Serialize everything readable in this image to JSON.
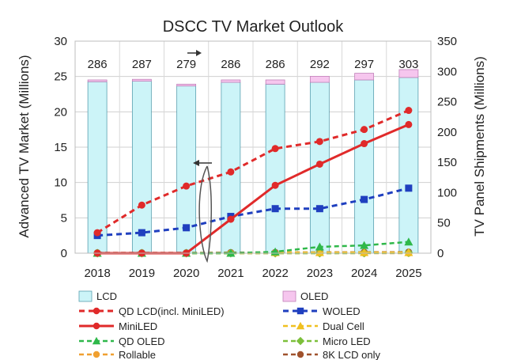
{
  "chart_data": {
    "type": "bar",
    "title": "DSCC TV Market Outlook",
    "categories": [
      "2018",
      "2019",
      "2020",
      "2021",
      "2022",
      "2023",
      "2024",
      "2025"
    ],
    "ylabel": "Advanced TV Market (Millions)",
    "y2label": "TV Panel Shipments (Millions)",
    "ylim": [
      0,
      30
    ],
    "y_ticks": [
      "0",
      "5",
      "10",
      "15",
      "20",
      "25",
      "30"
    ],
    "y2lim": [
      0,
      350
    ],
    "y2_ticks": [
      "0",
      "50",
      "100",
      "150",
      "200",
      "250",
      "300",
      "350"
    ],
    "grid": true,
    "legend_position": "bottom",
    "totals": [
      "286",
      "287",
      "279",
      "286",
      "286",
      "292",
      "297",
      "303"
    ],
    "bars": [
      {
        "name": "LCD",
        "axis": "right",
        "color": "#ccf4f8",
        "stroke": "#5aa0b0",
        "values": [
          283,
          284,
          276,
          282,
          279,
          282,
          286,
          290
        ]
      },
      {
        "name": "OLED",
        "axis": "right",
        "color": "#f6c6ee",
        "stroke": "#c080b8",
        "values": [
          3,
          3,
          3,
          4,
          7,
          10,
          11,
          13
        ]
      }
    ],
    "series": [
      {
        "name": "QD LCD(incl. MiniLED)",
        "axis": "left",
        "color": "#e02a2a",
        "dash": "7,5",
        "marker": "circle",
        "width": 3,
        "values": [
          2.9,
          6.8,
          9.5,
          11.5,
          14.8,
          15.8,
          17.5,
          20.2
        ]
      },
      {
        "name": "WOLED",
        "axis": "left",
        "color": "#1f3fbf",
        "dash": "7,5",
        "marker": "square",
        "width": 3,
        "values": [
          2.5,
          2.9,
          3.6,
          5.2,
          6.3,
          6.3,
          7.6,
          9.2
        ]
      },
      {
        "name": "MiniLED",
        "axis": "left",
        "color": "#e02a2a",
        "dash": "",
        "marker": "circle",
        "width": 3,
        "values": [
          0,
          0,
          0,
          4.8,
          9.6,
          12.6,
          15.5,
          18.2
        ]
      },
      {
        "name": "Dual Cell",
        "axis": "left",
        "color": "#f0c020",
        "dash": "6,4",
        "marker": "triangle",
        "width": 2.5,
        "values": [
          0,
          0,
          0,
          0,
          0.1,
          0.1,
          0.1,
          0.1
        ]
      },
      {
        "name": "QD OLED",
        "axis": "left",
        "color": "#2fb84a",
        "dash": "6,4",
        "marker": "triangle",
        "width": 2.5,
        "values": [
          0,
          0,
          0,
          0,
          0.2,
          0.9,
          1.1,
          1.6
        ]
      },
      {
        "name": "Micro LED",
        "axis": "left",
        "color": "#7cbf3a",
        "dash": "6,4",
        "marker": "diamond",
        "width": 2.5,
        "values": [
          0,
          0,
          0,
          0,
          0,
          0,
          0.02,
          0.05
        ]
      },
      {
        "name": "Rollable",
        "axis": "left",
        "color": "#f0a030",
        "dash": "6,4",
        "marker": "circle",
        "width": 2.5,
        "values": [
          0,
          0,
          0,
          0,
          0,
          0,
          0,
          0
        ]
      },
      {
        "name": "8K LCD only",
        "axis": "left",
        "color": "#a0522d",
        "dash": "6,4",
        "marker": "circle",
        "width": 2.5,
        "values": [
          0.05,
          0.05,
          0.05,
          0.08,
          0.1,
          0.12,
          0.13,
          0.15
        ]
      }
    ]
  }
}
